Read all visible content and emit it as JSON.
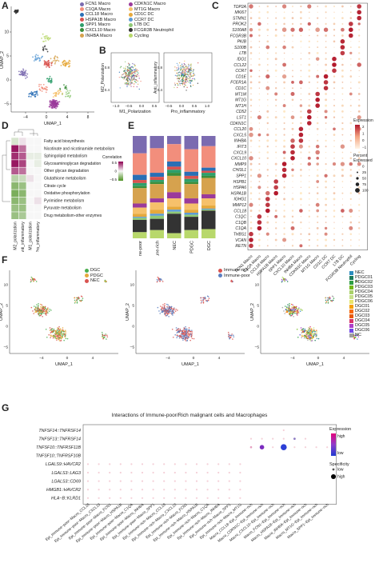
{
  "panels": {
    "a": "A",
    "b": "B",
    "c": "C",
    "d": "D",
    "e": "E",
    "f": "F",
    "g": "G"
  },
  "colors": {
    "accent_red": "#b2182b",
    "accent_green": "#4d9221",
    "accent_purple": "#7e57c2"
  },
  "a": {
    "xlabel": "UMAP_1",
    "ylabel": "UMAP_2",
    "xticks": [
      "−4",
      "0",
      "4",
      "8"
    ],
    "yticks": [
      "−5",
      "0",
      "5",
      "10"
    ],
    "legend": [
      {
        "label": "FCN1 Macro",
        "color": "#7b6bb0"
      },
      {
        "label": "CDKN1C Macro",
        "color": "#9b3a9b"
      },
      {
        "label": "C1QA Macro",
        "color": "#f28e7c"
      },
      {
        "label": "MT1G Macro",
        "color": "#f6c16b"
      },
      {
        "label": "CCL18 Macro",
        "color": "#2a6fb5"
      },
      {
        "label": "CD1C DC",
        "color": "#e6a93c"
      },
      {
        "label": "HSPA1B Macro",
        "color": "#d9534f"
      },
      {
        "label": "CCR7 DC",
        "color": "#5c9bd5"
      },
      {
        "label": "SPP1 Macro",
        "color": "#2e9e6b"
      },
      {
        "label": "LTB DC",
        "color": "#8fc975"
      },
      {
        "label": "CXCL10 Macro",
        "color": "#3b8e3b"
      },
      {
        "label": "FCGR3B Neutrophil",
        "color": "#333333"
      },
      {
        "label": "INHBA Macro",
        "color": "#d6a24e"
      },
      {
        "label": "Cycling",
        "color": "#b8d86b"
      }
    ]
  },
  "b": {
    "left": {
      "xlabel": "M1_Polarization",
      "ylabel": "M2_Polarization",
      "xticks": [
        "−1.0",
        "−0.5",
        "0.0",
        "0.5"
      ],
      "yticks": [
        "0.4",
        "0.8"
      ]
    },
    "right": {
      "xlabel": "Pro_inflammatory",
      "ylabel": "Anti_inflammatory",
      "xticks": [
        "−0.5",
        "0.0",
        "0.5",
        "1.0"
      ],
      "yticks": [
        "0.4",
        "0.8"
      ]
    }
  },
  "c": {
    "genes": [
      "TOP2A",
      "MKI67",
      "STMN1",
      "PROK2",
      "S100A8",
      "FCGR3B",
      "PKIB",
      "S100B",
      "LTB",
      "IDO1",
      "CCL22",
      "CCR7",
      "CD1E",
      "FCER1A",
      "CD1C",
      "MT1M",
      "MT1G",
      "MT1H",
      "CD52",
      "LST1",
      "CDKN1C",
      "CCL20",
      "CXCL5",
      "INHBA",
      "IFIT3",
      "CXCL9",
      "CXCL10",
      "MMP9",
      "CHI3L1",
      "SPP1",
      "HSPB1",
      "HSPA6",
      "HSPA1B",
      "IGHG1",
      "MMP12",
      "CCL18",
      "C1QC",
      "C1QB",
      "C1QA",
      "THBS1",
      "VCAN",
      "RETN"
    ],
    "clusters": [
      "FCN1 Macro",
      "C1QA Macro",
      "CCL18 Macro",
      "HSPA1B Macro",
      "SPP1 Macro",
      "CXCL10 Macro",
      "INHBA Macro",
      "CDKN1C Macro",
      "MT1G Macro",
      "CD1C DC",
      "CCR7 DC",
      "LTB DC",
      "FCGR3B Neutrophil",
      "Cycling"
    ],
    "legend_expression_title": "Expression",
    "legend_expression_ticks": [
      "2",
      "1",
      "0",
      "−1"
    ],
    "legend_percent_title": "Percent Expressed",
    "legend_percent_values": [
      "0",
      "25",
      "50",
      "75",
      "100"
    ]
  },
  "d": {
    "rows": [
      "Fatty acid biosynthesis",
      "Nicotinate and nicotinamide metabolism",
      "Sphingolipid metabolism",
      "Glycosaminoglycan degradation",
      "Other glycan degradation",
      "Glutathione metabolism",
      "Citrate cycle",
      "Oxidative phosphorylation",
      "Pyrimidine metabolism",
      "Pyruvate metabolism",
      "Drug metabolism-other enzymes"
    ],
    "cols": [
      "M2_polarization",
      "Anti_inflammatory",
      "M1_polarization",
      "Pro_inflammatory"
    ],
    "values": [
      [
        -0.1,
        0.05,
        0.0,
        0.0
      ],
      [
        0.5,
        0.3,
        0.0,
        0.0
      ],
      [
        0.45,
        0.35,
        -0.05,
        -0.05
      ],
      [
        0.5,
        0.4,
        0.0,
        -0.05
      ],
      [
        0.35,
        0.3,
        0.0,
        0.0
      ],
      [
        -0.2,
        -0.15,
        0.05,
        0.0
      ],
      [
        -0.35,
        -0.3,
        0.0,
        0.0
      ],
      [
        -0.4,
        -0.35,
        0.0,
        0.0
      ],
      [
        -0.35,
        -0.3,
        0.0,
        0.05
      ],
      [
        -0.3,
        -0.3,
        0.0,
        0.0
      ],
      [
        -0.3,
        -0.25,
        0.0,
        0.0
      ]
    ],
    "legend_title": "Correlation",
    "legend_ticks": [
      "0.5",
      "0",
      "−0.5"
    ]
  },
  "e": {
    "groups": [
      "Immune-poor",
      "Immune-rich",
      "NEC",
      "PDGC",
      "DGC"
    ],
    "colors": [
      "#7b6bb0",
      "#f28e7c",
      "#2a6fb5",
      "#d9534f",
      "#2e9e6b",
      "#3b8e3b",
      "#d6a24e",
      "#9b3a9b",
      "#f6c16b",
      "#e6a93c",
      "#5c9bd5",
      "#8fc975",
      "#333333",
      "#b8d86b"
    ],
    "fractions": [
      [
        0.17,
        0.21,
        0.05,
        0.03,
        0.03,
        0.02,
        0.15,
        0.04,
        0.06,
        0.03,
        0.01,
        0.02,
        0.12,
        0.06
      ],
      [
        0.12,
        0.24,
        0.04,
        0.03,
        0.02,
        0.02,
        0.14,
        0.04,
        0.07,
        0.04,
        0.02,
        0.03,
        0.11,
        0.08
      ],
      [
        0.08,
        0.17,
        0.05,
        0.03,
        0.03,
        0.03,
        0.16,
        0.06,
        0.08,
        0.03,
        0.02,
        0.02,
        0.19,
        0.05
      ],
      [
        0.13,
        0.22,
        0.04,
        0.03,
        0.03,
        0.02,
        0.14,
        0.05,
        0.06,
        0.03,
        0.02,
        0.02,
        0.13,
        0.08
      ],
      [
        0.1,
        0.21,
        0.03,
        0.02,
        0.03,
        0.02,
        0.16,
        0.04,
        0.07,
        0.03,
        0.01,
        0.01,
        0.18,
        0.09
      ]
    ]
  },
  "f": {
    "xlabel": "UMAP_1",
    "ylabel": "UMAP_2",
    "xticks": [
      "−4",
      "0",
      "4"
    ],
    "yticks": [
      "−5",
      "0",
      "5",
      "10"
    ],
    "legend1": [
      {
        "label": "DGC",
        "color": "#4caf50"
      },
      {
        "label": "PDGC",
        "color": "#e6a93c"
      },
      {
        "label": "NEC",
        "color": "#d9534f"
      }
    ],
    "legend2": [
      {
        "label": "Immune-rich",
        "color": "#d9534f"
      },
      {
        "label": "Immune-poor",
        "color": "#5c7fc0"
      }
    ],
    "legend3": [
      {
        "label": "NEC",
        "color": "#2b8cbe"
      },
      {
        "label": "PDGC01",
        "color": "#1b7a5a"
      },
      {
        "label": "PDGC02",
        "color": "#2f9e44"
      },
      {
        "label": "PDGC03",
        "color": "#74b816"
      },
      {
        "label": "PDGC04",
        "color": "#a9d16a"
      },
      {
        "label": "PDGC05",
        "color": "#c7e08a"
      },
      {
        "label": "PDGC06",
        "color": "#e8e56a"
      },
      {
        "label": "DGC01",
        "color": "#f59f00"
      },
      {
        "label": "DGC02",
        "color": "#f76707"
      },
      {
        "label": "DGC03",
        "color": "#e8590c"
      },
      {
        "label": "DGC04",
        "color": "#d6336c"
      },
      {
        "label": "DGC05",
        "color": "#ae3ec9"
      },
      {
        "label": "DGC06",
        "color": "#7048e8"
      },
      {
        "label": "NC",
        "color": "#9e9e9e"
      }
    ]
  },
  "g": {
    "title": "Interactions of Immune-poor/Rich malignant cells and Macrophages",
    "rows": [
      "TNFSF14::TNFRSF14",
      "TNFSF13::TNFRSF14",
      "TNFSF10::TNFRSF11B",
      "TNFSF10::TNFRSF10B",
      "LGALS9::HAVCR2",
      "LGALS3::LAG3",
      "LGALS3::CD69",
      "HMGB1::HAVCR2",
      "HLA−B::KLRD1"
    ],
    "cols": [
      "Epi_Immune−poor−Macro_CCL18",
      "Epi_Immune−poor−Macro_CXCL10",
      "Epi_Immune−poor−Macro_FCN1",
      "Epi_Immune−poor−Macro_HSPA1B",
      "Epi_Immune−poor−Macro_C1QA",
      "Epi_Immune−poor−Macro_INHBA",
      "Epi_Immune−poor−Macro_SPP1",
      "Epi_Immune−rich−Macro_CCL18",
      "Epi_Immune−rich−Macro_CXCL10",
      "Epi_Immune−rich−Macro_FCN1",
      "Epi_Immune−rich−Macro_HSPA1B",
      "Epi_Immune−rich−Macro_C1QA",
      "Epi_Immune−rich−Macro_INHBA",
      "Epi_Immune−rich−Macro_SPP1",
      "Epi_Immune−rich−Macro_MT1G",
      "Macro_CCL18−Epi_Immune−rich",
      "Macro_CDKN1C−Epi_Immune−rich",
      "Macro_CXCL10−Epi_Immune−rich",
      "Macro_FCN1−Epi_Immune−rich",
      "Macro_HSPA1B−Epi_Immune−rich",
      "Macro_INHBA−Epi_Immune−rich",
      "Macro_MT1G−Epi_Immune−rich",
      "Macro_SPP1−Epi_Immune−rich"
    ],
    "legend_expression_title": "Expression",
    "legend_expression_ticks": [
      "high",
      "low"
    ],
    "legend_specificity_title": "Specificity",
    "legend_specificity_ticks": [
      "low",
      "high"
    ]
  }
}
